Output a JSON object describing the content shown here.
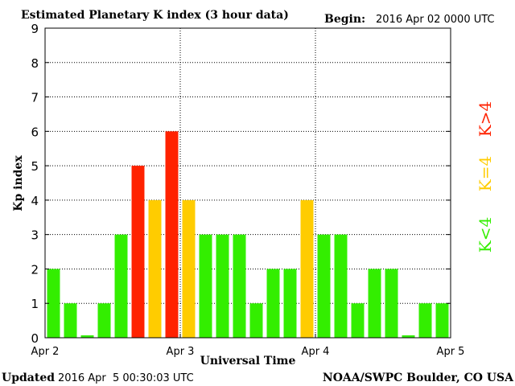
{
  "header": {
    "title": "Estimated Planetary K index (3 hour data)",
    "begin_label": "Begin:",
    "begin_value": "2016 Apr 02 0000 UTC"
  },
  "footer": {
    "updated_label": "Updated",
    "updated_value": "2016 Apr  5 00:30:03 UTC",
    "source": "NOAA/SWPC Boulder, CO USA"
  },
  "legend": {
    "storm": "K>4",
    "active": "K=4",
    "quiet": "K<4"
  },
  "colors": {
    "quiet": "#33ee00",
    "active": "#ffcc00",
    "storm": "#ff2200"
  },
  "chart_data": {
    "type": "bar",
    "xlabel": "Universal Time",
    "ylabel": "Kp index",
    "ylim": [
      0,
      9
    ],
    "yticks": [
      0,
      1,
      2,
      3,
      4,
      5,
      6,
      7,
      8,
      9
    ],
    "xticks": [
      "Apr 2",
      "Apr 3",
      "Apr 4",
      "Apr 5"
    ],
    "grid": true,
    "legend_placement": "right",
    "values": [
      2,
      1,
      0,
      1,
      3,
      5,
      4,
      6,
      4,
      3,
      3,
      3,
      1,
      2,
      2,
      4,
      3,
      3,
      1,
      2,
      2,
      0,
      1,
      1
    ]
  }
}
